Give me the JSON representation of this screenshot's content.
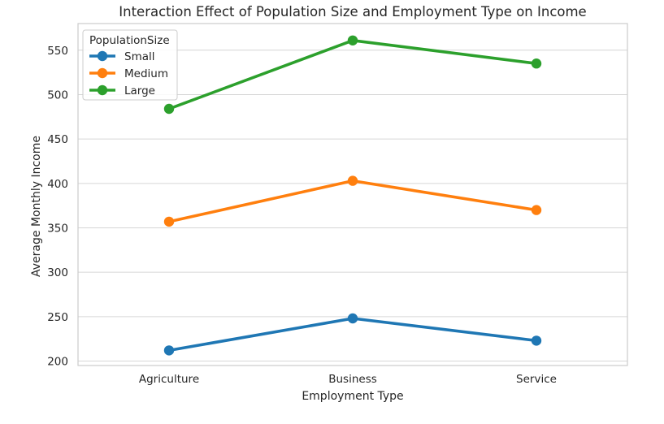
{
  "chart_data": {
    "type": "line",
    "title": "Interaction Effect of Population Size and Employment Type on Income",
    "xlabel": "Employment Type",
    "ylabel": "Average Monthly Income",
    "categories": [
      "Agriculture",
      "Business",
      "Service"
    ],
    "ylim": [
      195,
      580
    ],
    "yticks": [
      200,
      250,
      300,
      350,
      400,
      450,
      500,
      550
    ],
    "grid": true,
    "legend": {
      "title": "PopulationSize",
      "placement": "top-left"
    },
    "series": [
      {
        "name": "Small",
        "color": "#1f77b4",
        "values": [
          212,
          248,
          223
        ]
      },
      {
        "name": "Medium",
        "color": "#ff7f0e",
        "values": [
          357,
          403,
          370
        ]
      },
      {
        "name": "Large",
        "color": "#2ca02c",
        "values": [
          484,
          561,
          535
        ]
      }
    ]
  }
}
